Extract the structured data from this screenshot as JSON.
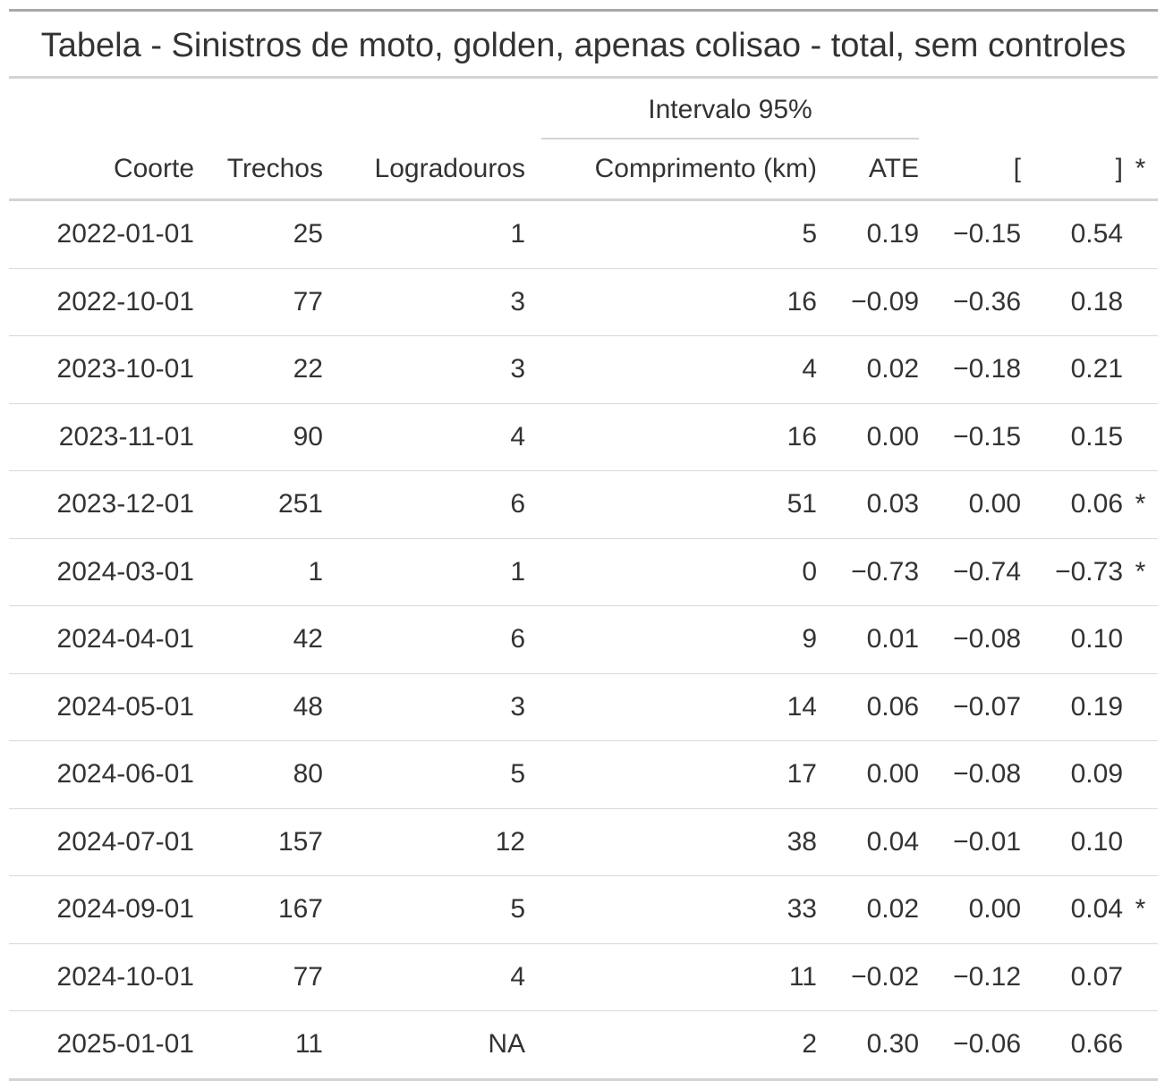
{
  "title": "Tabela - Sinistros de moto, golden, apenas colisao - total, sem controles",
  "spanner": "Intervalo 95%",
  "columns": {
    "coorte": "Coorte",
    "trechos": "Trechos",
    "logradouros": "Logradouros",
    "comprimento": "Comprimento (km)",
    "ate": "ATE",
    "lower": "[",
    "upper": "]",
    "sig": "*"
  },
  "rows": [
    {
      "coorte": "2022-01-01",
      "trechos": "25",
      "logradouros": "1",
      "comprimento": "5",
      "ate": "0.19",
      "lower": "−0.15",
      "upper": "0.54",
      "sig": ""
    },
    {
      "coorte": "2022-10-01",
      "trechos": "77",
      "logradouros": "3",
      "comprimento": "16",
      "ate": "−0.09",
      "lower": "−0.36",
      "upper": "0.18",
      "sig": ""
    },
    {
      "coorte": "2023-10-01",
      "trechos": "22",
      "logradouros": "3",
      "comprimento": "4",
      "ate": "0.02",
      "lower": "−0.18",
      "upper": "0.21",
      "sig": ""
    },
    {
      "coorte": "2023-11-01",
      "trechos": "90",
      "logradouros": "4",
      "comprimento": "16",
      "ate": "0.00",
      "lower": "−0.15",
      "upper": "0.15",
      "sig": ""
    },
    {
      "coorte": "2023-12-01",
      "trechos": "251",
      "logradouros": "6",
      "comprimento": "51",
      "ate": "0.03",
      "lower": "0.00",
      "upper": "0.06",
      "sig": "*"
    },
    {
      "coorte": "2024-03-01",
      "trechos": "1",
      "logradouros": "1",
      "comprimento": "0",
      "ate": "−0.73",
      "lower": "−0.74",
      "upper": "−0.73",
      "sig": "*"
    },
    {
      "coorte": "2024-04-01",
      "trechos": "42",
      "logradouros": "6",
      "comprimento": "9",
      "ate": "0.01",
      "lower": "−0.08",
      "upper": "0.10",
      "sig": ""
    },
    {
      "coorte": "2024-05-01",
      "trechos": "48",
      "logradouros": "3",
      "comprimento": "14",
      "ate": "0.06",
      "lower": "−0.07",
      "upper": "0.19",
      "sig": ""
    },
    {
      "coorte": "2024-06-01",
      "trechos": "80",
      "logradouros": "5",
      "comprimento": "17",
      "ate": "0.00",
      "lower": "−0.08",
      "upper": "0.09",
      "sig": ""
    },
    {
      "coorte": "2024-07-01",
      "trechos": "157",
      "logradouros": "12",
      "comprimento": "38",
      "ate": "0.04",
      "lower": "−0.01",
      "upper": "0.10",
      "sig": ""
    },
    {
      "coorte": "2024-09-01",
      "trechos": "167",
      "logradouros": "5",
      "comprimento": "33",
      "ate": "0.02",
      "lower": "0.00",
      "upper": "0.04",
      "sig": "*"
    },
    {
      "coorte": "2024-10-01",
      "trechos": "77",
      "logradouros": "4",
      "comprimento": "11",
      "ate": "−0.02",
      "lower": "−0.12",
      "upper": "0.07",
      "sig": ""
    },
    {
      "coorte": "2025-01-01",
      "trechos": "11",
      "logradouros": "NA",
      "comprimento": "2",
      "ate": "0.30",
      "lower": "−0.06",
      "upper": "0.66",
      "sig": ""
    }
  ]
}
